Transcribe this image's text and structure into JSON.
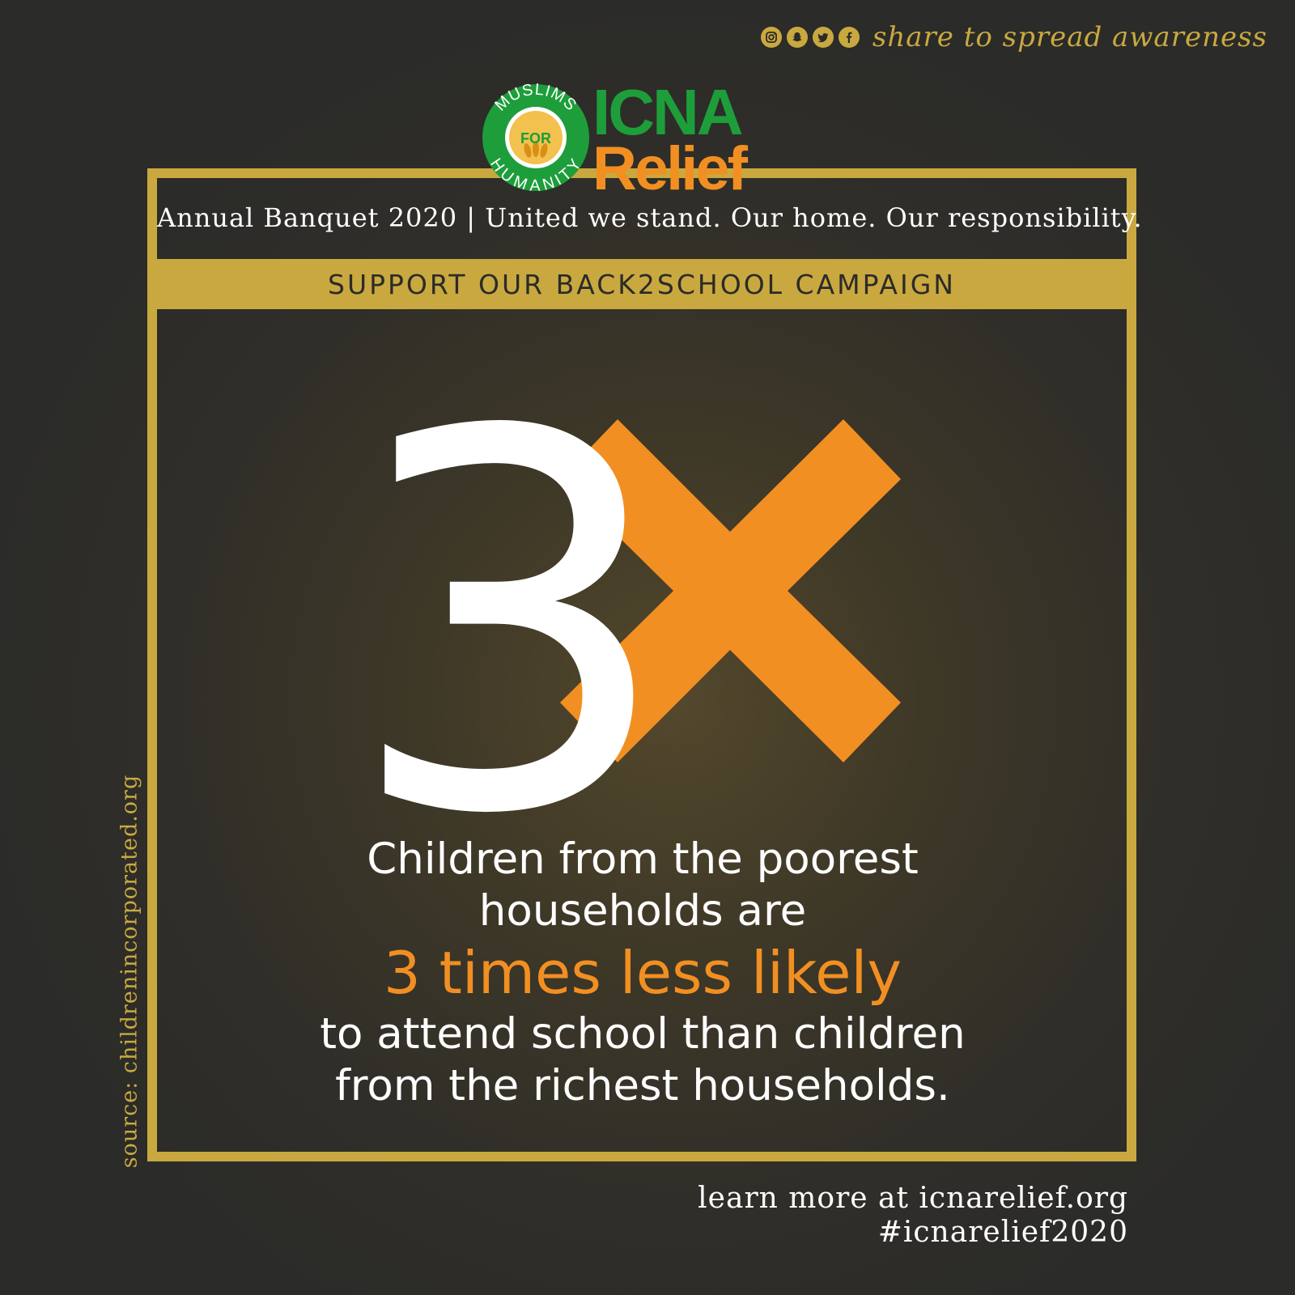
{
  "share": {
    "icons": [
      "instagram-icon",
      "snapchat-icon",
      "twitter-icon",
      "facebook-icon"
    ],
    "text": "share to spread awareness"
  },
  "logo": {
    "seal_top": "MUSLIMS",
    "seal_center": "FOR",
    "seal_bottom": "HUMANITY",
    "brand_line1": "ICNA",
    "brand_line2": "Relief"
  },
  "banner": {
    "banquet": "Annual Banquet 2020 | United we stand. Our home. Our responsibility.",
    "campaign": "SUPPORT OUR BACK2SCHOOL CAMPAIGN"
  },
  "hero": {
    "number": "3"
  },
  "statement": {
    "line1": "Children from the poorest",
    "line2": "households are",
    "highlight": "3 times less likely",
    "line3": "to attend school than children",
    "line4": "from the richest households."
  },
  "source": "source: childrenincorporated.org",
  "footer": {
    "learn_more": "learn more at icnarelief.org",
    "hashtag": "#icnarelief2020"
  },
  "colors": {
    "background": "#2b2b29",
    "gold": "#c9a93f",
    "orange": "#f28f22",
    "green": "#1d9e3a",
    "white": "#ffffff"
  }
}
